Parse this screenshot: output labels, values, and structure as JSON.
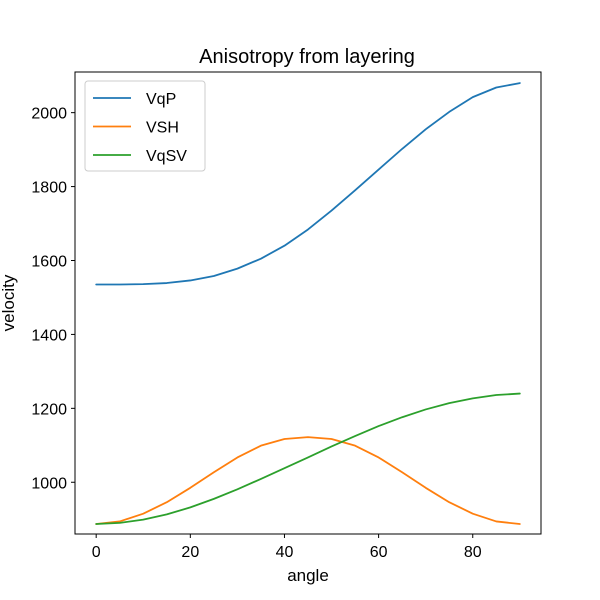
{
  "chart_data": {
    "type": "line",
    "title": "Anisotropy from layering",
    "xlabel": "angle",
    "ylabel": "velocity",
    "xlim": [
      -4.5,
      94.5
    ],
    "ylim": [
      860,
      2110
    ],
    "xticks": [
      0,
      20,
      40,
      60,
      80
    ],
    "yticks": [
      1000,
      1200,
      1400,
      1600,
      1800,
      2000
    ],
    "legend_position": "top-left",
    "grid": false,
    "series": [
      {
        "name": "VqP",
        "color": "#1f77b4",
        "x": [
          0,
          5,
          10,
          15,
          20,
          25,
          30,
          35,
          40,
          45,
          50,
          55,
          60,
          65,
          70,
          75,
          80,
          85,
          90
        ],
        "y": [
          1535,
          1535,
          1536,
          1539,
          1546,
          1558,
          1578,
          1605,
          1640,
          1684,
          1735,
          1790,
          1846,
          1902,
          1955,
          2002,
          2042,
          2068,
          2080
        ]
      },
      {
        "name": "VSH",
        "color": "#ff7f0e",
        "x": [
          0,
          5,
          10,
          15,
          20,
          25,
          30,
          35,
          40,
          45,
          50,
          55,
          60,
          65,
          70,
          75,
          80,
          85,
          90
        ],
        "y": [
          887,
          894,
          915,
          946,
          985,
          1027,
          1067,
          1099,
          1117,
          1122,
          1117,
          1099,
          1067,
          1027,
          985,
          946,
          915,
          894,
          887
        ]
      },
      {
        "name": "VqSV",
        "color": "#2ca02c",
        "x": [
          0,
          5,
          10,
          15,
          20,
          25,
          30,
          35,
          40,
          45,
          50,
          55,
          60,
          65,
          70,
          75,
          80,
          85,
          90
        ],
        "y": [
          887,
          890,
          899,
          913,
          932,
          955,
          981,
          1009,
          1038,
          1067,
          1097,
          1125,
          1152,
          1176,
          1197,
          1214,
          1227,
          1236,
          1240
        ]
      }
    ]
  }
}
